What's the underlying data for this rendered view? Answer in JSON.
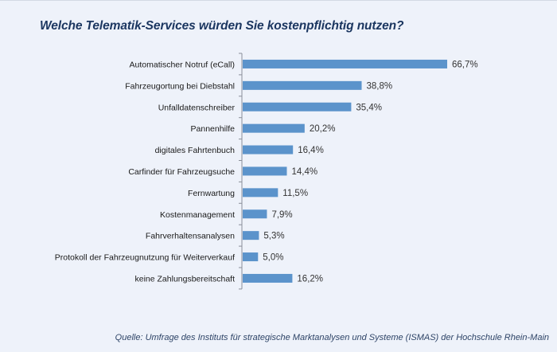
{
  "title": "Welche Telematik-Services würden Sie kostenpflichtig nutzen?",
  "source": "Quelle: Umfrage des Instituts für strategische Marktanalysen und Systeme (ISMAS) der Hochschule Rhein-Main",
  "colors": {
    "bar": "#5b93cb",
    "axis": "#8a8f99",
    "background": "#eef2fa",
    "title": "#1b3660"
  },
  "chart_data": {
    "type": "bar",
    "orientation": "horizontal",
    "title": "Welche Telematik-Services würden Sie kostenpflichtig nutzen?",
    "xlabel": "",
    "ylabel": "",
    "unit": "%",
    "xlim": [
      0,
      70
    ],
    "grid": false,
    "legend": "none",
    "categories": [
      "Automatischer Notruf (eCall)",
      "Fahrzeugortung bei Diebstahl",
      "Unfalldatenschreiber",
      "Pannenhilfe",
      "digitales Fahrtenbuch",
      "Carfinder für Fahrzeugsuche",
      "Fernwartung",
      "Kostenmanagement",
      "Fahrverhaltensanalysen",
      "Protokoll der Fahrzeugnutzung für Weiterverkauf",
      "keine Zahlungsbereitschaft"
    ],
    "values": [
      66.7,
      38.8,
      35.4,
      20.2,
      16.4,
      14.4,
      11.5,
      7.9,
      5.3,
      5.0,
      16.2
    ],
    "value_labels": [
      "66,7%",
      "38,8%",
      "35,4%",
      "20,2%",
      "16,4%",
      "14,4%",
      "11,5%",
      "7,9%",
      "5,3%",
      "5,0%",
      "16,2%"
    ]
  }
}
